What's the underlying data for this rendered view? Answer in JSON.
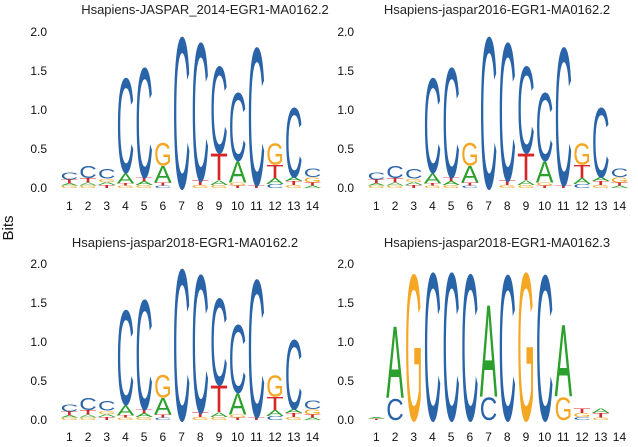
{
  "chart_data": {
    "type": "sequence-logo",
    "ylabel": "Bits",
    "alphabet": [
      "A",
      "C",
      "G",
      "T"
    ],
    "colors": {
      "A": "#2ca02c",
      "C": "#2a64a8",
      "G": "#f5a623",
      "T": "#d62728"
    },
    "ylim": [
      0,
      2
    ],
    "yticks": [
      "0.0",
      "0.5",
      "1.0",
      "1.5",
      "2.0"
    ],
    "panels": [
      {
        "title": "Hsapiens-JASPAR_2014-EGR1-MA0162.2",
        "positions": [
          "1",
          "2",
          "3",
          "4",
          "5",
          "6",
          "7",
          "8",
          "9",
          "10",
          "11",
          "12",
          "13",
          "14"
        ],
        "heights": [
          {
            "C": 0.09,
            "T": 0.05,
            "G": 0.03,
            "A": 0.03
          },
          {
            "C": 0.16,
            "T": 0.06,
            "A": 0.04,
            "G": 0.03
          },
          {
            "C": 0.13,
            "T": 0.04,
            "A": 0.04,
            "G": 0.04
          },
          {
            "C": 1.25,
            "A": 0.14,
            "G": 0.03,
            "T": 0.03
          },
          {
            "C": 1.45,
            "A": 0.05,
            "T": 0.05,
            "G": 0.04
          },
          {
            "G": 0.3,
            "A": 0.22,
            "T": 0.04,
            "C": 0.03
          },
          {
            "C": 2.0
          },
          {
            "C": 1.82,
            "T": 0.06,
            "G": 0.04
          },
          {
            "C": 1.15,
            "T": 0.35,
            "A": 0.06,
            "G": 0.04
          },
          {
            "C": 0.9,
            "A": 0.28,
            "G": 0.04,
            "T": 0.03
          },
          {
            "C": 1.82,
            "T": 0.04
          },
          {
            "G": 0.28,
            "T": 0.17,
            "A": 0.08,
            "C": 0.05
          },
          {
            "C": 0.92,
            "T": 0.05,
            "A": 0.05,
            "G": 0.04
          },
          {
            "C": 0.11,
            "G": 0.07,
            "T": 0.04,
            "A": 0.03
          }
        ]
      },
      {
        "title": "Hsapiens-jaspar2016-EGR1-MA0162.2",
        "positions": [
          "1",
          "2",
          "3",
          "4",
          "5",
          "6",
          "7",
          "8",
          "9",
          "10",
          "11",
          "12",
          "13",
          "14"
        ],
        "heights": [
          {
            "C": 0.09,
            "T": 0.05,
            "G": 0.03,
            "A": 0.03
          },
          {
            "C": 0.16,
            "T": 0.06,
            "A": 0.04,
            "G": 0.03
          },
          {
            "C": 0.13,
            "T": 0.04,
            "A": 0.04,
            "G": 0.04
          },
          {
            "C": 1.25,
            "A": 0.14,
            "G": 0.03,
            "T": 0.03
          },
          {
            "C": 1.45,
            "A": 0.05,
            "T": 0.05,
            "G": 0.04
          },
          {
            "G": 0.3,
            "A": 0.22,
            "T": 0.04,
            "C": 0.03
          },
          {
            "C": 2.0
          },
          {
            "C": 1.82,
            "T": 0.06,
            "G": 0.04
          },
          {
            "C": 1.15,
            "T": 0.35,
            "A": 0.06,
            "G": 0.04
          },
          {
            "C": 0.9,
            "A": 0.28,
            "G": 0.04,
            "T": 0.03
          },
          {
            "C": 1.82,
            "T": 0.04
          },
          {
            "G": 0.28,
            "T": 0.17,
            "A": 0.08,
            "C": 0.05
          },
          {
            "C": 0.92,
            "T": 0.05,
            "A": 0.05,
            "G": 0.04
          },
          {
            "C": 0.11,
            "G": 0.07,
            "T": 0.04,
            "A": 0.03
          }
        ]
      },
      {
        "title": "Hsapiens-jaspar2018-EGR1-MA0162.2",
        "positions": [
          "1",
          "2",
          "3",
          "4",
          "5",
          "6",
          "7",
          "8",
          "9",
          "10",
          "11",
          "12",
          "13",
          "14"
        ],
        "heights": [
          {
            "C": 0.09,
            "T": 0.05,
            "G": 0.03,
            "A": 0.03
          },
          {
            "C": 0.16,
            "T": 0.06,
            "A": 0.04,
            "G": 0.03
          },
          {
            "C": 0.13,
            "T": 0.04,
            "A": 0.04,
            "G": 0.04
          },
          {
            "C": 1.25,
            "A": 0.14,
            "G": 0.03,
            "T": 0.03
          },
          {
            "C": 1.45,
            "A": 0.05,
            "T": 0.05,
            "G": 0.04
          },
          {
            "G": 0.3,
            "A": 0.22,
            "T": 0.04,
            "C": 0.03
          },
          {
            "C": 2.0
          },
          {
            "C": 1.82,
            "T": 0.06,
            "G": 0.04
          },
          {
            "C": 1.15,
            "T": 0.35,
            "A": 0.06,
            "G": 0.04
          },
          {
            "C": 0.9,
            "A": 0.28,
            "G": 0.04,
            "T": 0.03
          },
          {
            "C": 1.82,
            "T": 0.04
          },
          {
            "G": 0.28,
            "T": 0.17,
            "A": 0.08,
            "C": 0.05
          },
          {
            "C": 0.92,
            "T": 0.05,
            "A": 0.05,
            "G": 0.04
          },
          {
            "C": 0.11,
            "G": 0.07,
            "T": 0.04,
            "A": 0.03
          }
        ]
      },
      {
        "title": "Hsapiens-jaspar2018-EGR1-MA0162.3",
        "positions": [
          "1",
          "2",
          "3",
          "4",
          "5",
          "6",
          "7",
          "8",
          "9",
          "10",
          "11",
          "12",
          "13",
          "14"
        ],
        "heights": [
          {
            "T": 0.02,
            "A": 0.02
          },
          {
            "A": 0.95,
            "C": 0.28
          },
          {
            "G": 1.93
          },
          {
            "C": 1.95
          },
          {
            "C": 1.95
          },
          {
            "C": 1.93
          },
          {
            "A": 1.22,
            "C": 0.3
          },
          {
            "C": 1.92
          },
          {
            "G": 1.95
          },
          {
            "C": 1.92
          },
          {
            "A": 0.95,
            "G": 0.3
          },
          {
            "G": 0.05,
            "T": 0.06,
            "C": 0.04
          },
          {
            "T": 0.06,
            "A": 0.06,
            "G": 0.03
          },
          {
            "C": 0.0
          }
        ]
      }
    ]
  }
}
